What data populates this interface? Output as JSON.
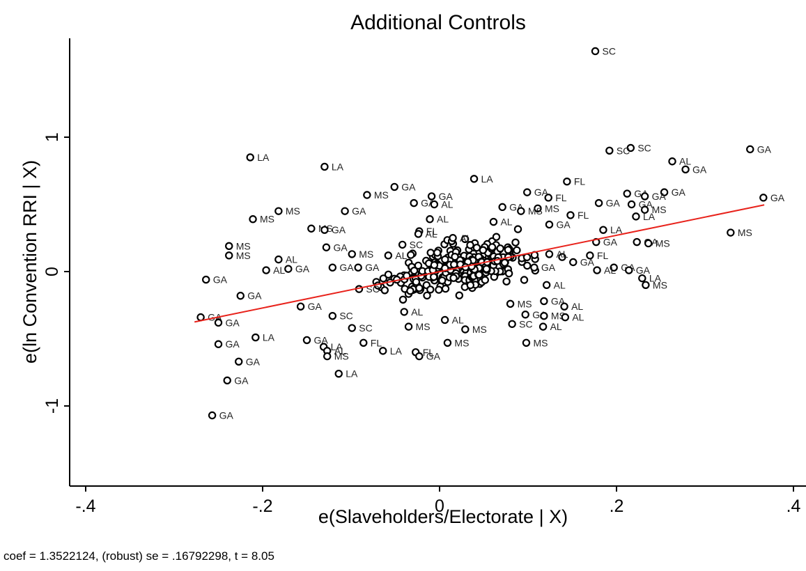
{
  "chart_data": {
    "type": "scatter",
    "title": "Additional Controls",
    "xlabel": "e(Slaveholders/Electorate | X)",
    "ylabel": "e(ln Convention RRI | X)",
    "note": "coef = 1.3522124, (robust) se = .16792298, t = 8.05",
    "xlim": [
      -0.42,
      0.41
    ],
    "ylim": [
      -1.6,
      1.7
    ],
    "xticks": [
      -0.4,
      -0.2,
      0,
      0.2,
      0.4
    ],
    "xtick_labels": [
      "-.4",
      "-.2",
      "0",
      ".2",
      ".4"
    ],
    "yticks": [
      -1,
      0,
      1
    ],
    "ytick_labels": [
      "-1",
      "0",
      "1"
    ],
    "fit_line": {
      "x": [
        -0.277,
        0.367
      ],
      "y": [
        -0.375,
        0.496
      ]
    },
    "colors": {
      "points": "#000000",
      "fit": "#e8221b"
    },
    "labeled_points": [
      {
        "x": 0.176,
        "y": 1.64,
        "label": "SC"
      },
      {
        "x": 0.351,
        "y": 0.91,
        "label": "GA"
      },
      {
        "x": 0.216,
        "y": 0.92,
        "label": "SC"
      },
      {
        "x": 0.192,
        "y": 0.9,
        "label": "SC"
      },
      {
        "x": -0.214,
        "y": 0.85,
        "label": "LA"
      },
      {
        "x": 0.263,
        "y": 0.82,
        "label": "AL"
      },
      {
        "x": 0.278,
        "y": 0.76,
        "label": "GA"
      },
      {
        "x": -0.13,
        "y": 0.78,
        "label": "LA"
      },
      {
        "x": 0.039,
        "y": 0.69,
        "label": "LA"
      },
      {
        "x": 0.144,
        "y": 0.67,
        "label": "FL"
      },
      {
        "x": -0.051,
        "y": 0.63,
        "label": "GA"
      },
      {
        "x": 0.099,
        "y": 0.59,
        "label": "GA"
      },
      {
        "x": 0.254,
        "y": 0.59,
        "label": "GA"
      },
      {
        "x": -0.082,
        "y": 0.57,
        "label": "MS"
      },
      {
        "x": -0.009,
        "y": 0.56,
        "label": "GA"
      },
      {
        "x": 0.366,
        "y": 0.55,
        "label": "GA"
      },
      {
        "x": 0.123,
        "y": 0.55,
        "label": "FL"
      },
      {
        "x": 0.212,
        "y": 0.58,
        "label": "GA"
      },
      {
        "x": 0.232,
        "y": 0.56,
        "label": "GA"
      },
      {
        "x": -0.029,
        "y": 0.51,
        "label": "GA"
      },
      {
        "x": -0.006,
        "y": 0.5,
        "label": "AL"
      },
      {
        "x": 0.18,
        "y": 0.51,
        "label": "GA"
      },
      {
        "x": 0.217,
        "y": 0.5,
        "label": "GA"
      },
      {
        "x": -0.182,
        "y": 0.45,
        "label": "MS"
      },
      {
        "x": -0.107,
        "y": 0.45,
        "label": "GA"
      },
      {
        "x": 0.071,
        "y": 0.48,
        "label": "GA"
      },
      {
        "x": 0.111,
        "y": 0.47,
        "label": "MS"
      },
      {
        "x": 0.232,
        "y": 0.46,
        "label": "MS"
      },
      {
        "x": 0.092,
        "y": 0.45,
        "label": "MS"
      },
      {
        "x": -0.211,
        "y": 0.39,
        "label": "MS"
      },
      {
        "x": -0.011,
        "y": 0.39,
        "label": "AL"
      },
      {
        "x": 0.148,
        "y": 0.42,
        "label": "FL"
      },
      {
        "x": 0.222,
        "y": 0.41,
        "label": "LA"
      },
      {
        "x": 0.061,
        "y": 0.37,
        "label": "AL"
      },
      {
        "x": 0.124,
        "y": 0.35,
        "label": "GA"
      },
      {
        "x": -0.145,
        "y": 0.32,
        "label": "MS"
      },
      {
        "x": -0.13,
        "y": 0.31,
        "label": "GA"
      },
      {
        "x": 0.185,
        "y": 0.31,
        "label": "LA"
      },
      {
        "x": 0.329,
        "y": 0.29,
        "label": "MS"
      },
      {
        "x": -0.023,
        "y": 0.3,
        "label": "FL"
      },
      {
        "x": -0.024,
        "y": 0.28,
        "label": "AL"
      },
      {
        "x": 0.015,
        "y": 0.25,
        "label": "AL"
      },
      {
        "x": -0.238,
        "y": 0.19,
        "label": "MS"
      },
      {
        "x": -0.238,
        "y": 0.12,
        "label": "MS"
      },
      {
        "x": -0.128,
        "y": 0.18,
        "label": "GA"
      },
      {
        "x": -0.099,
        "y": 0.13,
        "label": "MS"
      },
      {
        "x": -0.058,
        "y": 0.12,
        "label": "AL"
      },
      {
        "x": -0.042,
        "y": 0.2,
        "label": "SC"
      },
      {
        "x": 0.177,
        "y": 0.22,
        "label": "GA"
      },
      {
        "x": 0.223,
        "y": 0.22,
        "label": "GA"
      },
      {
        "x": 0.236,
        "y": 0.21,
        "label": "MS"
      },
      {
        "x": 0.17,
        "y": 0.12,
        "label": "FL"
      },
      {
        "x": 0.124,
        "y": 0.13,
        "label": "AL"
      },
      {
        "x": -0.182,
        "y": 0.09,
        "label": "AL"
      },
      {
        "x": -0.196,
        "y": 0.01,
        "label": "AL"
      },
      {
        "x": -0.171,
        "y": 0.02,
        "label": "GA"
      },
      {
        "x": -0.121,
        "y": 0.03,
        "label": "GA"
      },
      {
        "x": -0.092,
        "y": 0.03,
        "label": "GA"
      },
      {
        "x": 0.151,
        "y": 0.07,
        "label": "GA"
      },
      {
        "x": 0.197,
        "y": 0.03,
        "label": "GA"
      },
      {
        "x": 0.178,
        "y": 0.01,
        "label": "AL"
      },
      {
        "x": 0.214,
        "y": 0.01,
        "label": "GA"
      },
      {
        "x": 0.107,
        "y": 0.03,
        "label": "GA"
      },
      {
        "x": -0.264,
        "y": -0.06,
        "label": "GA"
      },
      {
        "x": 0.229,
        "y": -0.05,
        "label": "LA"
      },
      {
        "x": 0.233,
        "y": -0.1,
        "label": "MS"
      },
      {
        "x": 0.121,
        "y": -0.1,
        "label": "AL"
      },
      {
        "x": -0.225,
        "y": -0.18,
        "label": "GA"
      },
      {
        "x": -0.091,
        "y": -0.13,
        "label": "SC"
      },
      {
        "x": 0.118,
        "y": -0.22,
        "label": "GA"
      },
      {
        "x": 0.08,
        "y": -0.24,
        "label": "MS"
      },
      {
        "x": -0.157,
        "y": -0.26,
        "label": "GA"
      },
      {
        "x": 0.141,
        "y": -0.26,
        "label": "AL"
      },
      {
        "x": -0.27,
        "y": -0.34,
        "label": "GA"
      },
      {
        "x": -0.25,
        "y": -0.38,
        "label": "GA"
      },
      {
        "x": -0.121,
        "y": -0.33,
        "label": "SC"
      },
      {
        "x": -0.04,
        "y": -0.3,
        "label": "AL"
      },
      {
        "x": 0.006,
        "y": -0.36,
        "label": "AL"
      },
      {
        "x": 0.097,
        "y": -0.32,
        "label": "GA"
      },
      {
        "x": 0.118,
        "y": -0.33,
        "label": "MS"
      },
      {
        "x": 0.142,
        "y": -0.34,
        "label": "AL"
      },
      {
        "x": -0.099,
        "y": -0.42,
        "label": "SC"
      },
      {
        "x": -0.035,
        "y": -0.41,
        "label": "MS"
      },
      {
        "x": 0.029,
        "y": -0.43,
        "label": "MS"
      },
      {
        "x": 0.082,
        "y": -0.39,
        "label": "SC"
      },
      {
        "x": 0.117,
        "y": -0.41,
        "label": "AL"
      },
      {
        "x": -0.208,
        "y": -0.49,
        "label": "LA"
      },
      {
        "x": -0.15,
        "y": -0.51,
        "label": "GA"
      },
      {
        "x": -0.25,
        "y": -0.54,
        "label": "GA"
      },
      {
        "x": -0.131,
        "y": -0.56,
        "label": "LA"
      },
      {
        "x": -0.086,
        "y": -0.53,
        "label": "FL"
      },
      {
        "x": 0.009,
        "y": -0.53,
        "label": "MS"
      },
      {
        "x": 0.098,
        "y": -0.53,
        "label": "MS"
      },
      {
        "x": -0.127,
        "y": -0.59,
        "label": "AL"
      },
      {
        "x": -0.127,
        "y": -0.63,
        "label": "MS"
      },
      {
        "x": -0.064,
        "y": -0.59,
        "label": "LA"
      },
      {
        "x": -0.027,
        "y": -0.6,
        "label": "FL"
      },
      {
        "x": -0.023,
        "y": -0.63,
        "label": "GA"
      },
      {
        "x": -0.227,
        "y": -0.67,
        "label": "GA"
      },
      {
        "x": -0.114,
        "y": -0.76,
        "label": "LA"
      },
      {
        "x": -0.24,
        "y": -0.81,
        "label": "GA"
      },
      {
        "x": -0.257,
        "y": -1.07,
        "label": "GA"
      }
    ]
  }
}
